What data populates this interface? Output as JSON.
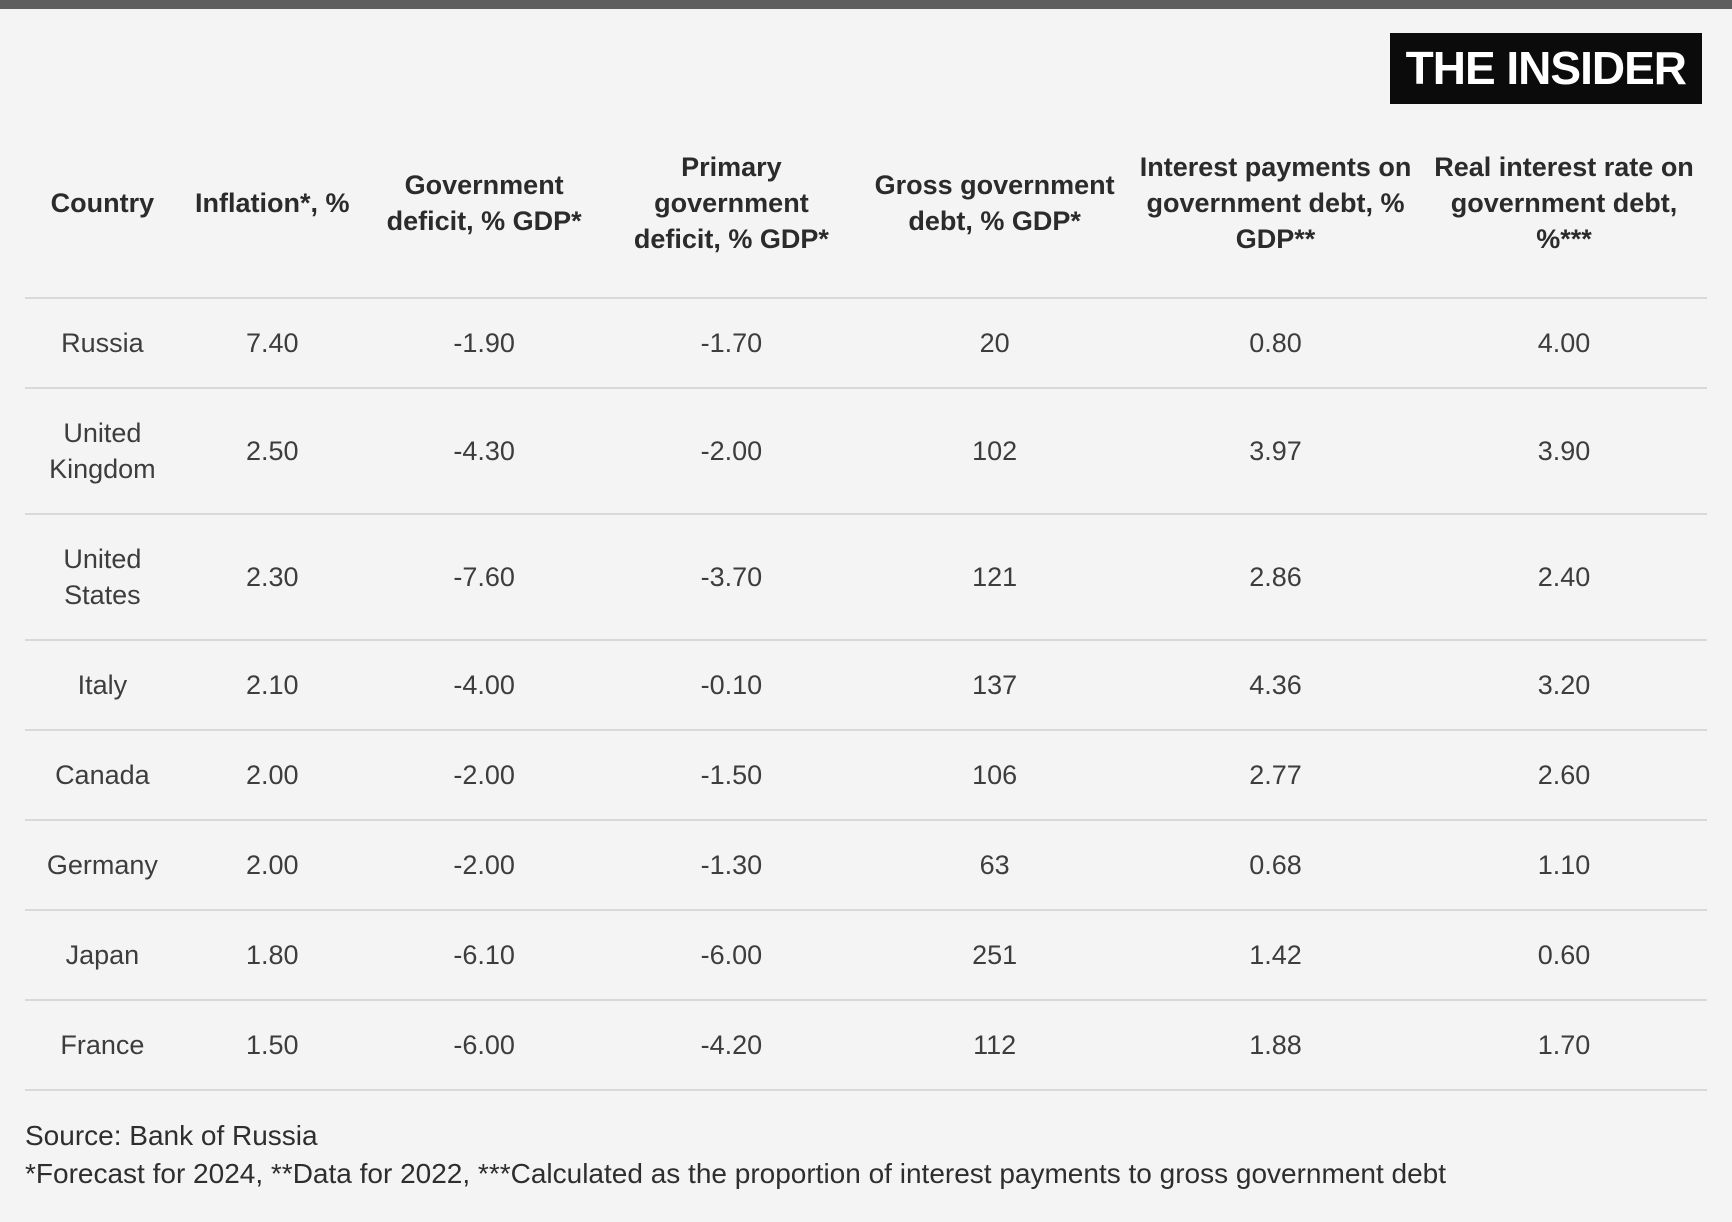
{
  "brand": {
    "logo_text": "THE INSIDER"
  },
  "colors": {
    "page_bg": "#f4f4f4",
    "top_bar": "#5f5f5f",
    "logo_bg": "#0b0b0b",
    "logo_text": "#ffffff",
    "header_text": "#2b2b2b",
    "cell_text": "#3d3d3d",
    "divider": "#d9d9d9",
    "footer_text": "#2e2e2e"
  },
  "chart_data": {
    "type": "table",
    "columns": [
      "Country",
      "Inflation*, %",
      "Government deficit, % GDP*",
      "Primary government deficit, % GDP*",
      "Gross government debt, % GDP*",
      "Interest payments on government debt, % GDP**",
      "Real interest rate on government debt, %***"
    ],
    "rows": [
      [
        "Russia",
        "7.40",
        "-1.90",
        "-1.70",
        "20",
        "0.80",
        "4.00"
      ],
      [
        "United Kingdom",
        "2.50",
        "-4.30",
        "-2.00",
        "102",
        "3.97",
        "3.90"
      ],
      [
        "United States",
        "2.30",
        "-7.60",
        "-3.70",
        "121",
        "2.86",
        "2.40"
      ],
      [
        "Italy",
        "2.10",
        "-4.00",
        "-0.10",
        "137",
        "4.36",
        "3.20"
      ],
      [
        "Canada",
        "2.00",
        "-2.00",
        "-1.50",
        "106",
        "2.77",
        "2.60"
      ],
      [
        "Germany",
        "2.00",
        "-2.00",
        "-1.30",
        "63",
        "0.68",
        "1.10"
      ],
      [
        "Japan",
        "1.80",
        "-6.10",
        "-6.00",
        "251",
        "1.42",
        "0.60"
      ],
      [
        "France",
        "1.50",
        "-6.00",
        "-4.20",
        "112",
        "1.88",
        "1.70"
      ]
    ],
    "column_widths_pct": [
      9.2,
      11.0,
      14.2,
      15.2,
      16.1,
      17.3,
      17.0
    ],
    "source": "Source: Bank of Russia",
    "footnote": "*Forecast for 2024, **Data for 2022, ***Calculated as the proportion of interest payments to gross government debt"
  }
}
